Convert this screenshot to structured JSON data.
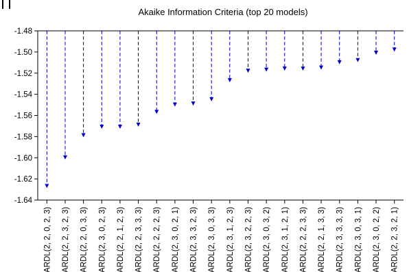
{
  "chart_data": {
    "type": "line",
    "title": "Akaike Information Criteria (top 20 models)",
    "xlabel": "",
    "ylabel": "",
    "ylim": [
      -1.64,
      -1.48
    ],
    "yticks": [
      "-1.48",
      "-1.50",
      "-1.52",
      "-1.54",
      "-1.56",
      "-1.58",
      "-1.60",
      "-1.62",
      "-1.64"
    ],
    "categories": [
      "ARDL(2, 2, 0, 2, 3)",
      "ARDL(2, 2, 3, 2, 3)",
      "ARDL(2, 2, 0, 3, 3)",
      "ARDL(2, 3, 0, 2, 3)",
      "ARDL(2, 2, 1, 2, 3)",
      "ARDL(2, 2, 3, 3, 3)",
      "ARDL(2, 2, 2, 2, 3)",
      "ARDL(2, 3, 0, 2, 1)",
      "ARDL(2, 3, 3, 2, 3)",
      "ARDL(2, 3, 0, 3, 3)",
      "ARDL(2, 3, 1, 2, 3)",
      "ARDL(2, 3, 2, 2, 3)",
      "ARDL(2, 3, 0, 3, 2)",
      "ARDL(2, 3, 1, 2, 1)",
      "ARDL(2, 2, 2, 3, 3)",
      "ARDL(2, 2, 1, 3, 3)",
      "ARDL(2, 3, 3, 3, 3)",
      "ARDL(2, 3, 0, 3, 1)",
      "ARDL(2, 3, 0, 2, 2)",
      "ARDL(2, 2, 3, 2, 1)"
    ],
    "values": [
      -1.628,
      -1.601,
      -1.58,
      -1.572,
      -1.572,
      -1.57,
      -1.558,
      -1.551,
      -1.55,
      -1.546,
      -1.528,
      -1.519,
      -1.518,
      -1.517,
      -1.517,
      -1.516,
      -1.511,
      -1.509,
      -1.502,
      -1.499
    ],
    "grid": false,
    "legend": "none"
  },
  "colors": {
    "series": "#0000cc",
    "axis": "#000000"
  }
}
